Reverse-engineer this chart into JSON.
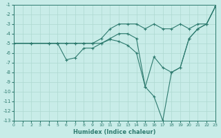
{
  "xlabel": "Humidex (Indice chaleur)",
  "background_color": "#c8ece8",
  "grid_color": "#aed8d0",
  "line_color": "#2d7a6e",
  "xlim": [
    0,
    23
  ],
  "ylim": [
    -13,
    -1
  ],
  "xticks": [
    0,
    1,
    2,
    3,
    4,
    5,
    6,
    7,
    8,
    9,
    10,
    11,
    12,
    13,
    14,
    15,
    16,
    17,
    18,
    19,
    20,
    21,
    22,
    23
  ],
  "yticks": [
    -1,
    -2,
    -3,
    -4,
    -5,
    -6,
    -7,
    -8,
    -9,
    -10,
    -11,
    -12,
    -13
  ],
  "line1_x": [
    0,
    2,
    4,
    5,
    6,
    7,
    8,
    9,
    10,
    11,
    12,
    13,
    14,
    15,
    16,
    17,
    18,
    19,
    20,
    21,
    22,
    23
  ],
  "line1_y": [
    -5,
    -5,
    -5,
    -5,
    -5,
    -5,
    -5,
    -5,
    -4.5,
    -3.5,
    -3,
    -3,
    -3,
    -3.5,
    -3,
    -3.5,
    -3.5,
    -3,
    -3.5,
    -3,
    -3,
    -1.2
  ],
  "line2_x": [
    0,
    2,
    4,
    5,
    6,
    7,
    8,
    9,
    10,
    11,
    12,
    13,
    14,
    15,
    16,
    17,
    18,
    19,
    20,
    21,
    22,
    23
  ],
  "line2_y": [
    -5,
    -5,
    -5,
    -5,
    -6.7,
    -6.5,
    -5.5,
    -5.5,
    -5,
    -4.6,
    -4.8,
    -5.2,
    -6,
    -9.5,
    -6.4,
    -7.5,
    -8,
    -7.5,
    -4.5,
    -3.5,
    -3,
    -1.2
  ],
  "line3_x": [
    0,
    2,
    4,
    5,
    6,
    7,
    8,
    9,
    10,
    11,
    12,
    13,
    14,
    15,
    16,
    17,
    18,
    19,
    20,
    21,
    22,
    23
  ],
  "line3_y": [
    -5,
    -5,
    -5,
    -5,
    -5,
    -5,
    -5,
    -5,
    -5,
    -4.5,
    -4,
    -4,
    -4.5,
    -9.5,
    -10.5,
    -13,
    -8,
    -7.5,
    -4.5,
    -3.5,
    -3,
    -1.2
  ],
  "marker": "+",
  "markersize": 3,
  "linewidth": 0.8
}
